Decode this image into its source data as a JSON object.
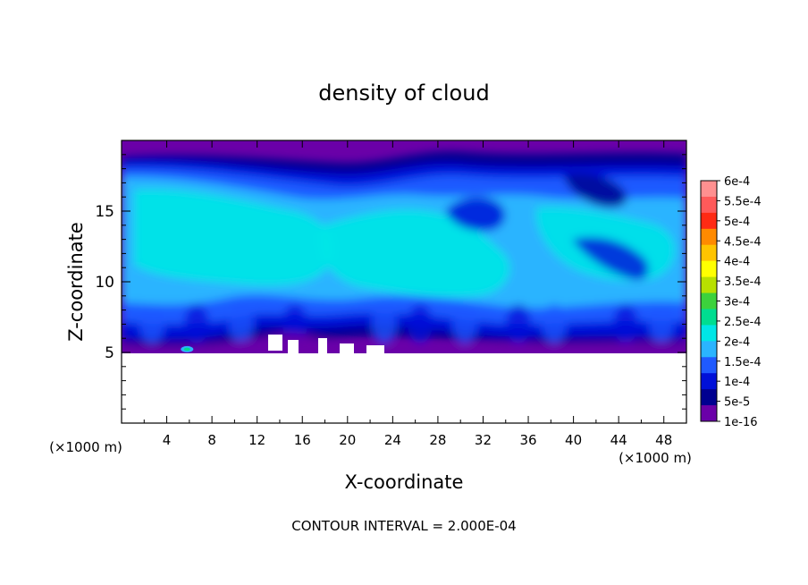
{
  "chart_data": {
    "type": "heatmap",
    "title": "density of cloud",
    "xlabel": "X-coordinate",
    "ylabel": "Z-coordinate",
    "x_unit": "(×1000 m)",
    "y_unit": "(×1000 m)",
    "xlim": [
      0,
      50
    ],
    "ylim": [
      0,
      20
    ],
    "x_ticks": [
      "4",
      "8",
      "12",
      "16",
      "20",
      "24",
      "28",
      "32",
      "36",
      "40",
      "44",
      "48"
    ],
    "y_ticks": [
      "5",
      "10",
      "15"
    ],
    "footer": "CONTOUR INTERVAL = 2.000E-04",
    "colorbar": {
      "labels": [
        "6e-4",
        "5.5e-4",
        "5e-4",
        "4.5e-4",
        "4e-4",
        "3.5e-4",
        "3e-4",
        "2.5e-4",
        "2e-4",
        "1.5e-4",
        "1e-4",
        "5e-5",
        "1e-16"
      ],
      "colors": [
        "#ff9090",
        "#ff5a5a",
        "#ff2a14",
        "#ff8a00",
        "#ffc400",
        "#ffff00",
        "#b8e000",
        "#3cd23c",
        "#00dd90",
        "#00e6e6",
        "#2ab4ff",
        "#1f5aff",
        "#0010d8",
        "#000090",
        "#6a00a8"
      ]
    },
    "field": {
      "cloud_base_z": 5,
      "cloud_top_z": 19.8,
      "dominant_level": "1.5e-4 to 2e-4",
      "max_local_values": [
        {
          "x": 5.8,
          "z": 5.1,
          "level": "2e-4"
        }
      ]
    }
  }
}
